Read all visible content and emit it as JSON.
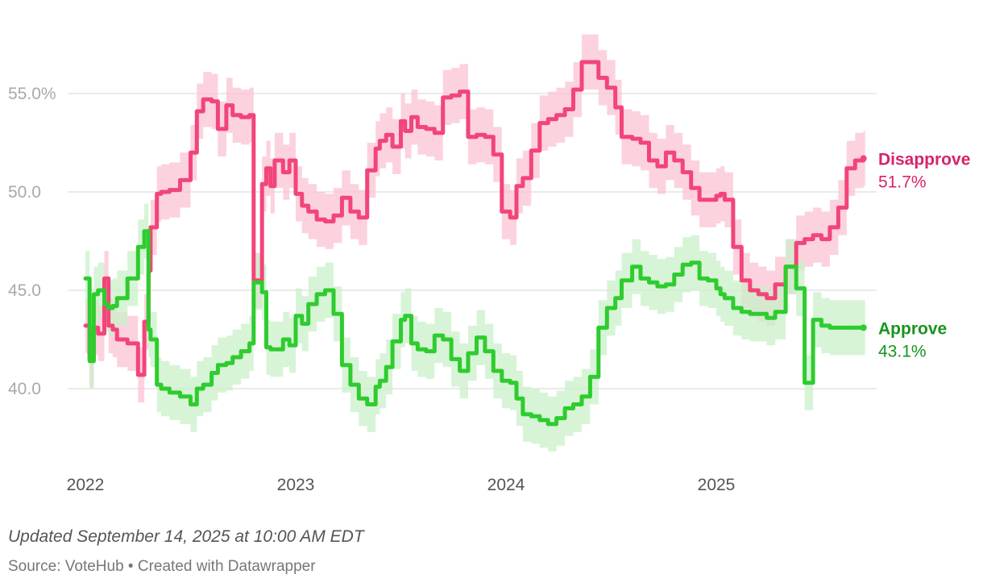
{
  "chart_data": {
    "type": "line",
    "title": "",
    "xlabel": "",
    "ylabel": "",
    "ylim": [
      36,
      59
    ],
    "xlim": [
      2022.0,
      2025.72
    ],
    "y_ticks": [
      {
        "value": 55,
        "label": "55.0%"
      },
      {
        "value": 50,
        "label": "50.0"
      },
      {
        "value": 45,
        "label": "45.0"
      },
      {
        "value": 40,
        "label": "40.0"
      }
    ],
    "x_ticks": [
      {
        "value": 2022,
        "label": "2022"
      },
      {
        "value": 2023,
        "label": "2023"
      },
      {
        "value": 2024,
        "label": "2024"
      },
      {
        "value": 2025,
        "label": "2025"
      }
    ],
    "series": [
      {
        "name": "Disapprove",
        "end_label": "51.7%",
        "color": "#f2457a",
        "label_color": "#d6246a",
        "band_color": "#fbc3d3",
        "band_halfwidth": 1.4,
        "x": [
          2022.0,
          2022.02,
          2022.04,
          2022.06,
          2022.09,
          2022.11,
          2022.13,
          2022.15,
          2022.2,
          2022.25,
          2022.28,
          2022.3,
          2022.31,
          2022.34,
          2022.36,
          2022.4,
          2022.45,
          2022.5,
          2022.53,
          2022.56,
          2022.6,
          2022.63,
          2022.67,
          2022.7,
          2022.74,
          2022.78,
          2022.8,
          2022.84,
          2022.86,
          2022.88,
          2022.9,
          2022.94,
          2022.97,
          2023.0,
          2023.03,
          2023.06,
          2023.1,
          2023.14,
          2023.18,
          2023.22,
          2023.26,
          2023.3,
          2023.34,
          2023.38,
          2023.4,
          2023.43,
          2023.46,
          2023.5,
          2023.52,
          2023.55,
          2023.58,
          2023.62,
          2023.66,
          2023.7,
          2023.74,
          2023.78,
          2023.82,
          2023.86,
          2023.9,
          2023.94,
          2023.98,
          2024.02,
          2024.05,
          2024.08,
          2024.12,
          2024.16,
          2024.2,
          2024.24,
          2024.28,
          2024.32,
          2024.36,
          2024.4,
          2024.44,
          2024.48,
          2024.52,
          2024.55,
          2024.6,
          2024.64,
          2024.68,
          2024.72,
          2024.76,
          2024.8,
          2024.84,
          2024.88,
          2024.92,
          2024.96,
          2025.0,
          2025.02,
          2025.04,
          2025.08,
          2025.12,
          2025.16,
          2025.2,
          2025.24,
          2025.28,
          2025.33,
          2025.38,
          2025.42,
          2025.46,
          2025.5,
          2025.54,
          2025.58,
          2025.62,
          2025.66,
          2025.7
        ],
        "values": [
          43.2,
          41.5,
          43.1,
          42.8,
          45.6,
          43.2,
          43.0,
          42.5,
          42.3,
          40.7,
          43.4,
          46.0,
          48.2,
          49.9,
          50.0,
          50.1,
          50.6,
          52.0,
          54.1,
          54.7,
          54.6,
          53.2,
          54.4,
          53.9,
          53.8,
          53.9,
          45.5,
          50.4,
          51.2,
          50.3,
          51.6,
          51.0,
          51.6,
          49.9,
          49.3,
          49.0,
          48.6,
          48.5,
          48.8,
          49.7,
          49.0,
          48.7,
          51.1,
          52.2,
          52.6,
          52.9,
          52.3,
          53.6,
          53.1,
          53.8,
          53.3,
          53.2,
          53.0,
          54.8,
          54.9,
          55.1,
          52.8,
          52.9,
          52.8,
          51.9,
          49.0,
          48.7,
          50.3,
          50.7,
          52.1,
          53.5,
          53.7,
          53.9,
          54.2,
          55.2,
          56.6,
          56.6,
          55.8,
          55.3,
          54.3,
          52.8,
          52.7,
          52.5,
          51.6,
          51.3,
          52.0,
          51.6,
          51.0,
          50.2,
          49.6,
          49.6,
          49.8,
          49.9,
          49.6,
          47.2,
          45.5,
          45.0,
          44.8,
          44.6,
          45.3,
          46.2,
          47.4,
          47.6,
          47.8,
          47.6,
          48.2,
          49.2,
          51.2,
          51.6,
          51.7
        ]
      },
      {
        "name": "Approve",
        "end_label": "43.1%",
        "color": "#2ecc2e",
        "label_color": "#17951e",
        "band_color": "#c9f0c9",
        "band_halfwidth": 1.4,
        "x": [
          2022.0,
          2022.02,
          2022.04,
          2022.06,
          2022.09,
          2022.11,
          2022.13,
          2022.15,
          2022.2,
          2022.25,
          2022.28,
          2022.3,
          2022.31,
          2022.34,
          2022.36,
          2022.4,
          2022.45,
          2022.5,
          2022.53,
          2022.56,
          2022.6,
          2022.63,
          2022.67,
          2022.7,
          2022.74,
          2022.78,
          2022.8,
          2022.84,
          2022.86,
          2022.88,
          2022.9,
          2022.94,
          2022.97,
          2023.0,
          2023.03,
          2023.06,
          2023.1,
          2023.14,
          2023.18,
          2023.22,
          2023.26,
          2023.3,
          2023.34,
          2023.38,
          2023.4,
          2023.43,
          2023.46,
          2023.5,
          2023.52,
          2023.55,
          2023.58,
          2023.62,
          2023.66,
          2023.7,
          2023.74,
          2023.78,
          2023.82,
          2023.86,
          2023.9,
          2023.94,
          2023.98,
          2024.02,
          2024.05,
          2024.08,
          2024.12,
          2024.16,
          2024.2,
          2024.24,
          2024.28,
          2024.32,
          2024.36,
          2024.4,
          2024.44,
          2024.48,
          2024.52,
          2024.55,
          2024.6,
          2024.64,
          2024.68,
          2024.72,
          2024.76,
          2024.8,
          2024.84,
          2024.88,
          2024.92,
          2024.96,
          2025.0,
          2025.02,
          2025.04,
          2025.08,
          2025.12,
          2025.16,
          2025.2,
          2025.24,
          2025.28,
          2025.33,
          2025.38,
          2025.42,
          2025.46,
          2025.5,
          2025.54,
          2025.58,
          2025.62,
          2025.66,
          2025.7
        ],
        "values": [
          45.6,
          41.4,
          44.8,
          45.0,
          44.3,
          44.1,
          44.2,
          44.6,
          45.6,
          47.2,
          48.0,
          43.0,
          42.5,
          40.2,
          40.0,
          39.8,
          39.6,
          39.2,
          40.0,
          40.2,
          40.8,
          41.2,
          41.3,
          41.6,
          41.9,
          42.3,
          45.4,
          44.9,
          42.1,
          42.0,
          42.0,
          42.5,
          42.2,
          43.7,
          43.3,
          44.3,
          44.8,
          45.0,
          43.8,
          41.2,
          40.2,
          39.5,
          39.2,
          40.1,
          40.4,
          41.1,
          42.4,
          43.5,
          43.7,
          42.3,
          42.0,
          41.9,
          42.7,
          42.5,
          41.5,
          40.9,
          41.8,
          42.6,
          41.9,
          40.9,
          40.4,
          40.3,
          39.5,
          38.7,
          38.6,
          38.4,
          38.2,
          38.5,
          39.0,
          39.2,
          39.6,
          40.6,
          43.1,
          44.1,
          44.6,
          45.5,
          46.2,
          45.6,
          45.4,
          45.2,
          45.3,
          45.8,
          46.3,
          46.4,
          45.6,
          45.5,
          45.1,
          44.8,
          44.6,
          44.1,
          43.9,
          43.8,
          43.8,
          43.6,
          43.9,
          46.2,
          45.1,
          40.3,
          43.5,
          43.2,
          43.1,
          43.1,
          43.1,
          43.1,
          43.1
        ]
      }
    ]
  },
  "footer": {
    "updated": "Updated September 14, 2025 at 10:00 AM EDT",
    "source": "Source: VoteHub • Created with Datawrapper"
  }
}
